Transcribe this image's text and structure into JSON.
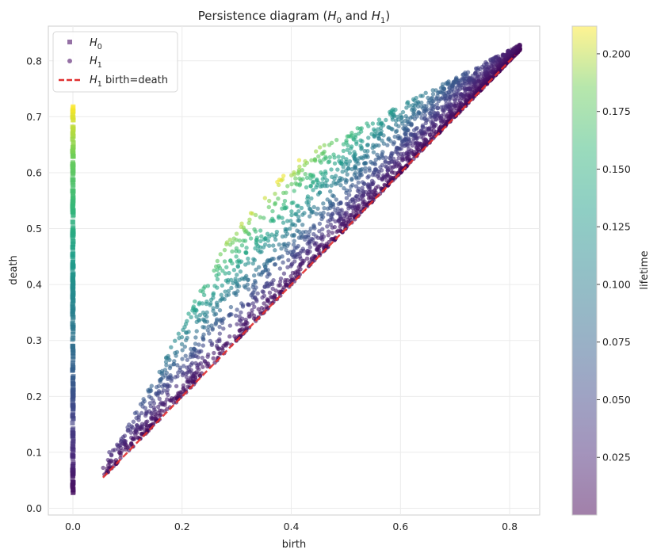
{
  "chart_data": {
    "type": "scatter",
    "title": "Persistence diagram (H₀ and H₁)",
    "xlabel": "birth",
    "ylabel": "death",
    "xlim": [
      -0.045,
      0.855
    ],
    "ylim": [
      -0.012,
      0.862
    ],
    "x_ticks": [
      "0.0",
      "0.2",
      "0.4",
      "0.6",
      "0.8"
    ],
    "y_ticks": [
      "0.0",
      "0.1",
      "0.2",
      "0.3",
      "0.4",
      "0.5",
      "0.6",
      "0.7",
      "0.8"
    ],
    "grid": true,
    "legend_position": "top-left",
    "colormap": "viridis",
    "colorbar": {
      "label": "lifetime",
      "range": [
        0.0,
        0.212
      ],
      "ticks": [
        "0.025",
        "0.050",
        "0.075",
        "0.100",
        "0.125",
        "0.150",
        "0.175",
        "0.200"
      ]
    },
    "series": [
      {
        "name": "H0",
        "marker": "square",
        "description_points": {
          "x": 0.0,
          "death_range": [
            0.025,
            0.72
          ]
        }
      },
      {
        "name": "H1",
        "marker": "circle",
        "description_points": {
          "birth_range": [
            0.055,
            0.82
          ],
          "lifetime_range": [
            0.0,
            0.21
          ],
          "example_points": [
            [
              0.055,
              0.06
            ],
            [
              0.1,
              0.11
            ],
            [
              0.15,
              0.2
            ],
            [
              0.2,
              0.27
            ],
            [
              0.25,
              0.4
            ],
            [
              0.3,
              0.5
            ],
            [
              0.35,
              0.56
            ],
            [
              0.4,
              0.6
            ],
            [
              0.5,
              0.68
            ],
            [
              0.6,
              0.76
            ],
            [
              0.7,
              0.8
            ],
            [
              0.8,
              0.82
            ]
          ]
        }
      },
      {
        "name": "H1 birth=death",
        "style": "dashed",
        "color": "#e03030",
        "points": [
          [
            0.055,
            0.055
          ],
          [
            0.81,
            0.81
          ]
        ]
      }
    ]
  },
  "legend": {
    "h0_main": "H",
    "h0_sub": "0",
    "h1_main": "H",
    "h1_sub": "1",
    "diag_main": "H",
    "diag_sub": "1",
    "diag_rest": " birth=death"
  },
  "title_parts": {
    "a": "Persistence diagram (",
    "h": "H",
    "s0": "0",
    "mid": " and ",
    "s1": "1",
    "end": ")"
  }
}
